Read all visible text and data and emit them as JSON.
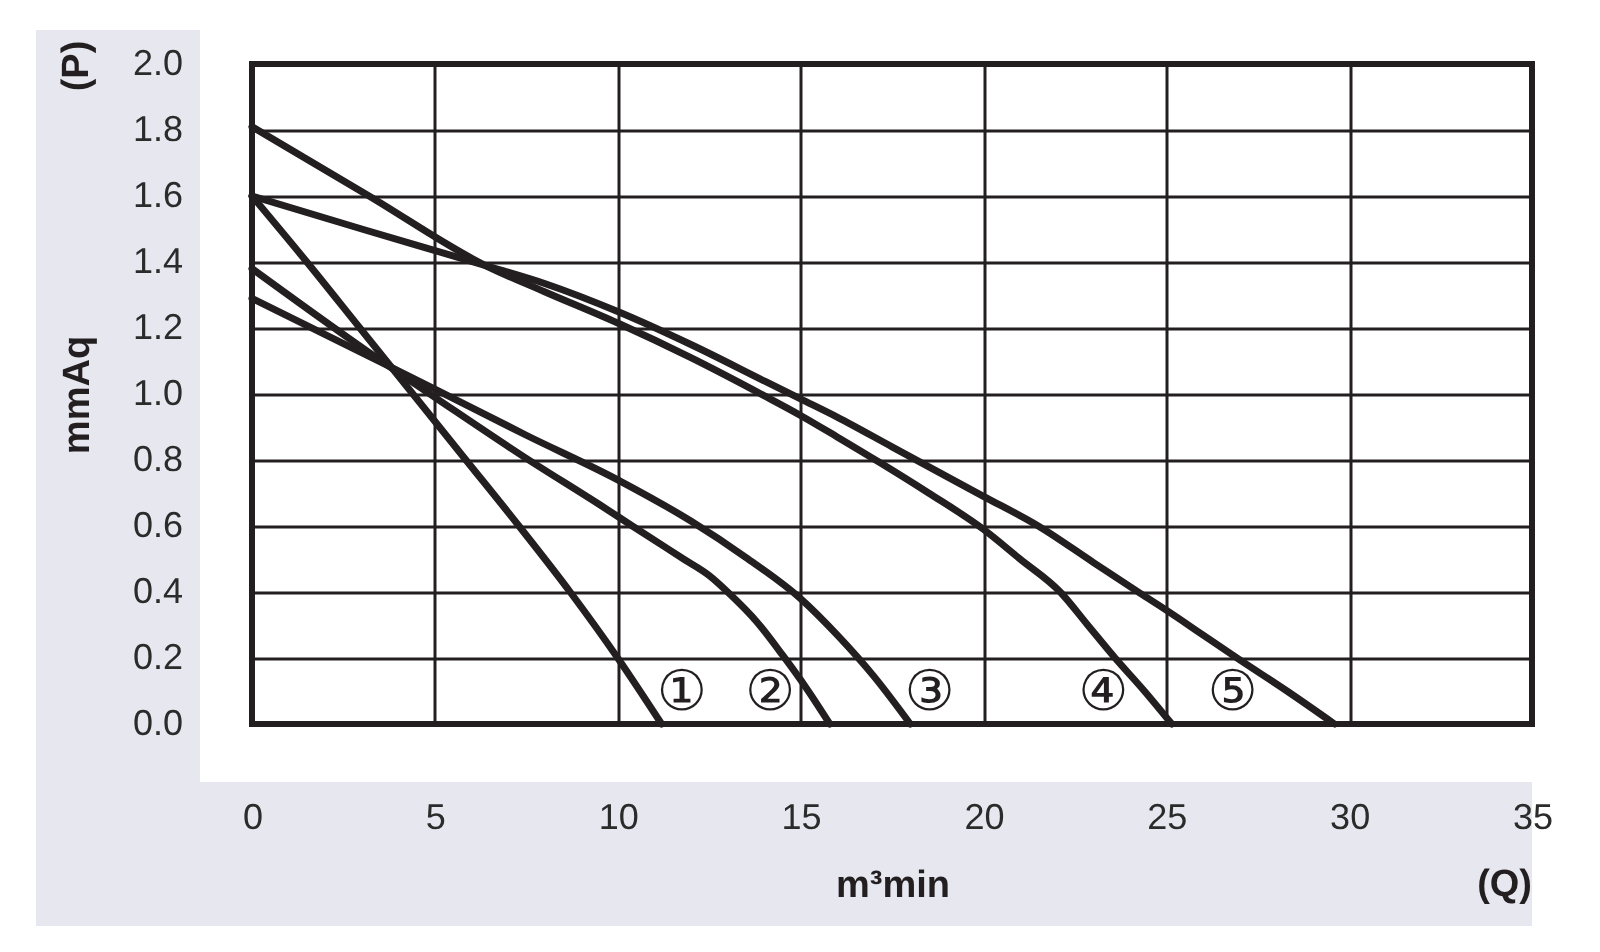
{
  "chart_data": {
    "type": "line",
    "xlabel": "m³min",
    "ylabel": "mmAq",
    "annotations": [
      "(P)",
      "(Q)"
    ],
    "xlim": [
      0,
      35
    ],
    "xticks": [
      0,
      5,
      10,
      15,
      20,
      25,
      30,
      35
    ],
    "ylim": [
      0,
      2
    ],
    "yticks": [
      {
        "value": 0,
        "label": "0.0"
      },
      0.2,
      0.4,
      0.6,
      0.8,
      {
        "value": 1,
        "label": "1.0"
      },
      1.2,
      1.4,
      1.6,
      1.8,
      {
        "value": 2,
        "label": "2.0"
      }
    ],
    "grid": true,
    "series": [
      {
        "name": "①",
        "color": "#231f20",
        "x": [
          0,
          1.5,
          2.95,
          4.4,
          5.85,
          7.3,
          8.7,
          10,
          11.2
        ],
        "values": [
          1.6,
          1.4,
          1.2,
          1.0,
          0.8,
          0.6,
          0.4,
          0.2,
          0
        ]
      },
      {
        "name": "②",
        "color": "#231f20",
        "x": [
          0,
          3.73,
          5,
          7.5,
          9.5,
          10.4,
          11.8,
          12.5,
          13.1,
          13.8,
          14.5,
          15.15,
          15.8
        ],
        "values": [
          1.38,
          1.085,
          0.99,
          0.805,
          0.665,
          0.6,
          0.5,
          0.45,
          0.39,
          0.31,
          0.21,
          0.11,
          0
        ]
      },
      {
        "name": "③",
        "color": "#231f20",
        "x": [
          0,
          3.73,
          5,
          7.5,
          10,
          12,
          13.5,
          15,
          16,
          17,
          18
        ],
        "values": [
          1.29,
          1.085,
          1.015,
          0.875,
          0.74,
          0.615,
          0.505,
          0.38,
          0.27,
          0.145,
          0
        ]
      },
      {
        "name": "④",
        "color": "#231f20",
        "x": [
          0,
          3.2,
          6.37,
          8,
          10,
          12,
          14,
          15,
          16,
          17.2,
          18.5,
          20,
          21,
          22.1,
          22.85,
          23.6,
          24.4,
          25.15
        ],
        "values": [
          1.81,
          1.6,
          1.39,
          1.31,
          1.215,
          1.11,
          0.995,
          0.935,
          0.87,
          0.79,
          0.7,
          0.59,
          0.5,
          0.4,
          0.3,
          0.2,
          0.1,
          0
        ]
      },
      {
        "name": "⑤",
        "color": "#231f20",
        "x": [
          0,
          3,
          6.37,
          8,
          10,
          12,
          14,
          15,
          16,
          17.5,
          20,
          21.5,
          23,
          24.3,
          25,
          26,
          27,
          28.3,
          29.6
        ],
        "values": [
          1.6,
          1.5,
          1.39,
          1.335,
          1.25,
          1.15,
          1.04,
          0.985,
          0.93,
          0.84,
          0.69,
          0.6,
          0.49,
          0.395,
          0.345,
          0.27,
          0.195,
          0.1,
          0
        ]
      }
    ]
  }
}
